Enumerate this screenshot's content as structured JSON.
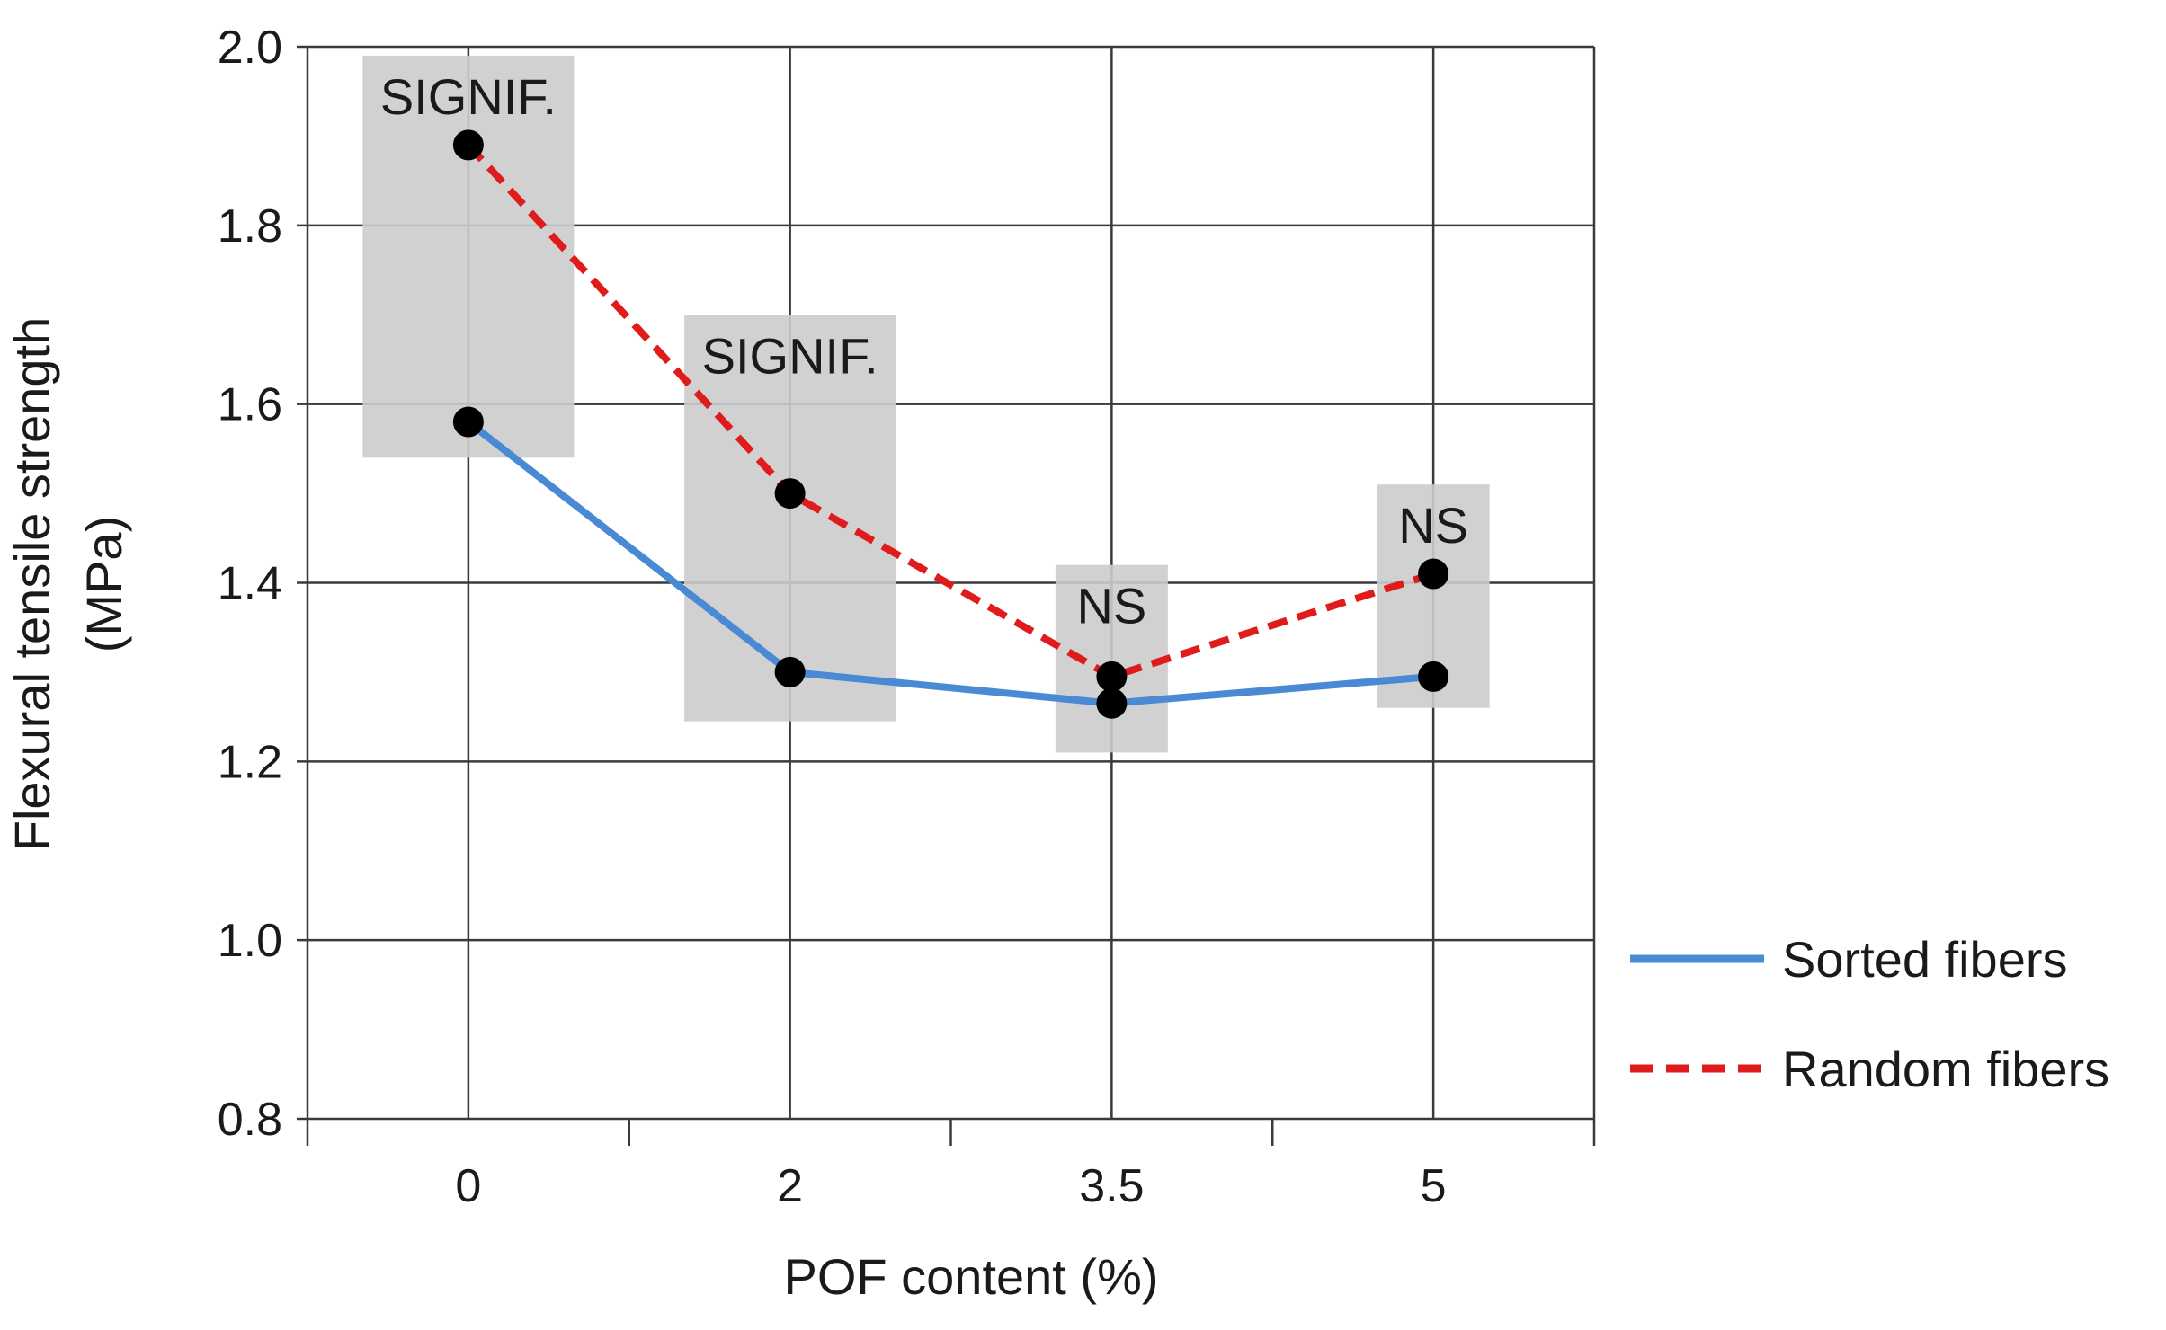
{
  "chart_data": {
    "type": "line",
    "categories": [
      "0",
      "2",
      "3.5",
      "5"
    ],
    "series": [
      {
        "name": "Sorted fibers",
        "values": [
          1.58,
          1.3,
          1.265,
          1.295
        ],
        "color": "#4a8ad4",
        "style": "solid"
      },
      {
        "name": "Random fibers",
        "values": [
          1.89,
          1.5,
          1.295,
          1.41
        ],
        "color": "#e01b1b",
        "style": "dashed"
      }
    ],
    "significance": [
      {
        "category": "0",
        "label": "SIGNIF.",
        "low": 1.54,
        "high": 1.99
      },
      {
        "category": "2",
        "label": "SIGNIF.",
        "low": 1.245,
        "high": 1.7
      },
      {
        "category": "3.5",
        "label": "NS",
        "low": 1.21,
        "high": 1.42
      },
      {
        "category": "5",
        "label": "NS",
        "low": 1.26,
        "high": 1.51
      }
    ],
    "xlabel": "POF content (%)",
    "ylabel_line1": "Flexural tensile strength",
    "ylabel_line2": "(MPa)",
    "ylim": [
      0.8,
      2.0
    ],
    "yticks": [
      "0.8",
      "1.0",
      "1.2",
      "1.4",
      "1.6",
      "1.8",
      "2.0"
    ],
    "grid": true,
    "legend_position": "right",
    "marker_color": "#000000",
    "shade_color": "#cccccc"
  }
}
